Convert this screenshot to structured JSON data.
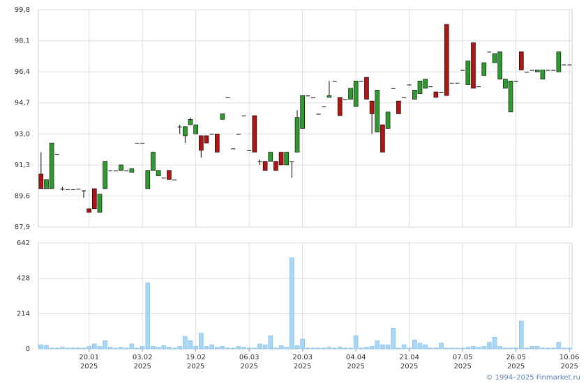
{
  "chart_data": {
    "type": "candlestick",
    "categories": [
      null,
      null,
      null,
      null,
      null,
      null,
      null,
      null,
      null,
      [
        "20.01",
        "2025"
      ],
      null,
      null,
      null,
      null,
      null,
      null,
      null,
      null,
      null,
      [
        "03.02",
        "2025"
      ],
      null,
      null,
      null,
      null,
      null,
      null,
      null,
      null,
      null,
      [
        "19.02",
        "2025"
      ],
      null,
      null,
      null,
      null,
      null,
      null,
      null,
      null,
      null,
      [
        "06.03",
        "2025"
      ],
      null,
      null,
      null,
      null,
      null,
      null,
      null,
      null,
      null,
      [
        "20.03",
        "2025"
      ],
      null,
      null,
      null,
      null,
      null,
      null,
      null,
      null,
      null,
      [
        "04.04",
        "2025"
      ],
      null,
      null,
      null,
      null,
      null,
      null,
      null,
      null,
      null,
      [
        "21.04",
        "2025"
      ],
      null,
      null,
      null,
      null,
      null,
      null,
      null,
      null,
      null,
      [
        "07.05",
        "2025"
      ],
      null,
      null,
      null,
      null,
      null,
      null,
      null,
      null,
      null,
      [
        "26.05",
        "2025"
      ],
      null,
      null,
      null,
      null,
      null,
      null,
      null,
      null,
      null,
      [
        "10.06",
        "2025"
      ]
    ],
    "open": [
      90.8,
      90.0,
      90.0,
      91.9,
      90.0,
      89.96,
      89.96,
      90.0,
      89.9,
      88.9,
      90.0,
      88.7,
      90.0,
      91.0,
      91.0,
      91.0,
      91.0,
      90.9,
      92.5,
      92.5,
      90.0,
      91.0,
      90.7,
      90.6,
      91.0,
      90.5,
      93.4,
      92.9,
      93.5,
      93.0,
      92.9,
      92.9,
      93.0,
      93.0,
      93.8,
      95.0,
      92.2,
      93.0,
      94.0,
      92.1,
      94.0,
      91.5,
      91.5,
      91.5,
      91.5,
      92.0,
      91.3,
      91.5,
      92.0,
      93.3,
      95.1,
      95.0,
      94.1,
      94.5,
      95.0,
      95.9,
      95.0,
      94.9,
      94.9,
      94.5,
      95.9,
      96.1,
      94.8,
      93.1,
      93.5,
      93.3,
      95.5,
      94.8,
      95.0,
      95.7,
      94.9,
      95.2,
      95.5,
      95.6,
      95.3,
      95.3,
      99.0,
      95.8,
      95.8,
      96.5,
      95.7,
      98.0,
      95.6,
      96.2,
      97.5,
      96.9,
      96.0,
      95.5,
      94.2,
      95.9,
      97.5,
      96.4,
      96.5,
      96.4,
      96.0,
      96.5,
      96.5,
      96.4,
      96.8,
      96.8
    ],
    "high": [
      92.0,
      90.5,
      92.5,
      91.9,
      90.1,
      89.96,
      89.96,
      90.0,
      89.9,
      88.9,
      90.0,
      89.7,
      91.5,
      91.0,
      91.0,
      91.3,
      91.0,
      91.1,
      92.5,
      92.5,
      91.0,
      92.0,
      91.0,
      90.6,
      91.0,
      90.5,
      93.5,
      93.4,
      93.9,
      93.5,
      92.9,
      92.9,
      93.0,
      93.0,
      94.1,
      95.0,
      92.2,
      93.0,
      94.0,
      92.1,
      94.0,
      91.6,
      91.5,
      92.0,
      91.5,
      92.0,
      92.0,
      91.5,
      94.3,
      95.1,
      95.1,
      95.0,
      94.1,
      94.5,
      95.9,
      95.9,
      95.0,
      94.9,
      95.5,
      95.9,
      95.9,
      96.1,
      94.8,
      95.4,
      93.5,
      94.2,
      95.5,
      94.8,
      95.0,
      95.7,
      95.4,
      95.9,
      96.0,
      95.6,
      95.3,
      95.3,
      99.0,
      95.8,
      95.8,
      96.5,
      97.0,
      98.0,
      95.6,
      96.9,
      97.5,
      97.4,
      97.5,
      96.0,
      95.9,
      95.9,
      97.5,
      96.4,
      96.5,
      96.5,
      96.5,
      96.5,
      96.5,
      97.5,
      96.8,
      96.8
    ],
    "low": [
      90.0,
      90.0,
      90.0,
      91.9,
      89.9,
      89.96,
      89.96,
      90.0,
      89.5,
      88.7,
      88.9,
      88.7,
      90.0,
      91.0,
      91.0,
      91.0,
      91.0,
      90.9,
      92.5,
      92.5,
      90.0,
      91.0,
      90.7,
      90.6,
      90.5,
      90.5,
      93.0,
      92.5,
      93.5,
      93.0,
      91.7,
      92.5,
      93.0,
      92.0,
      93.8,
      95.0,
      92.2,
      93.0,
      94.0,
      92.1,
      92.0,
      91.3,
      91.0,
      91.5,
      91.0,
      91.3,
      91.3,
      90.6,
      92.0,
      93.3,
      95.1,
      95.0,
      94.1,
      94.5,
      95.0,
      95.9,
      94.0,
      94.9,
      94.9,
      94.5,
      95.9,
      94.9,
      93.0,
      93.1,
      92.0,
      93.3,
      95.5,
      94.1,
      95.0,
      95.7,
      94.9,
      95.2,
      95.5,
      95.6,
      95.0,
      95.3,
      95.1,
      95.8,
      95.8,
      96.5,
      95.7,
      95.5,
      95.6,
      96.2,
      97.5,
      96.9,
      96.0,
      95.5,
      94.2,
      95.9,
      96.5,
      96.4,
      96.5,
      96.4,
      96.0,
      96.5,
      96.5,
      96.4,
      96.8,
      96.8
    ],
    "close": [
      90.0,
      90.5,
      92.5,
      91.9,
      90.0,
      89.96,
      89.96,
      90.0,
      89.9,
      88.7,
      88.9,
      89.7,
      91.5,
      91.0,
      91.0,
      91.3,
      91.0,
      91.1,
      92.5,
      92.5,
      91.0,
      92.0,
      91.0,
      90.6,
      90.5,
      90.5,
      93.4,
      93.4,
      93.8,
      93.5,
      92.1,
      92.5,
      93.0,
      92.0,
      94.1,
      95.0,
      92.2,
      93.0,
      94.0,
      92.1,
      92.0,
      91.5,
      91.0,
      92.0,
      91.0,
      91.3,
      92.0,
      91.5,
      93.9,
      95.1,
      95.1,
      95.0,
      94.1,
      94.5,
      95.1,
      95.9,
      94.0,
      94.9,
      95.5,
      95.9,
      95.9,
      94.9,
      94.1,
      95.4,
      92.0,
      94.2,
      95.5,
      94.1,
      95.0,
      95.7,
      95.4,
      95.9,
      96.0,
      95.6,
      95.0,
      95.3,
      95.1,
      95.8,
      95.8,
      96.5,
      97.0,
      95.5,
      95.6,
      96.9,
      97.5,
      97.4,
      97.5,
      96.0,
      95.9,
      95.9,
      96.5,
      96.4,
      96.5,
      96.5,
      96.5,
      96.5,
      96.5,
      97.5,
      96.8,
      96.8
    ],
    "volume": [
      25,
      22,
      5,
      6,
      10,
      5,
      5,
      6,
      5,
      15,
      30,
      15,
      50,
      10,
      5,
      10,
      5,
      30,
      5,
      15,
      401,
      15,
      10,
      20,
      10,
      5,
      15,
      76,
      50,
      15,
      95,
      15,
      25,
      10,
      15,
      5,
      5,
      15,
      10,
      5,
      5,
      30,
      25,
      80,
      5,
      20,
      10,
      553,
      20,
      60,
      5,
      5,
      5,
      5,
      10,
      5,
      10,
      5,
      5,
      80,
      5,
      10,
      15,
      50,
      25,
      25,
      125,
      5,
      25,
      5,
      55,
      35,
      25,
      5,
      5,
      35,
      5,
      5,
      5,
      5,
      10,
      15,
      10,
      15,
      40,
      70,
      15,
      5,
      5,
      5,
      169,
      5,
      15,
      15,
      5,
      5,
      5,
      40,
      5,
      5
    ],
    "up_color": "#2e9a2e",
    "down_color": "#b01515",
    "volume_color": "#a9d6f7",
    "ylim": [
      87.9,
      99.8
    ],
    "yticks": [
      {
        "value": 87.9,
        "label": "87,9"
      },
      {
        "value": 89.6,
        "label": "89,6"
      },
      {
        "value": 91.3,
        "label": "91,3"
      },
      {
        "value": 93.0,
        "label": "93,0"
      },
      {
        "value": 94.7,
        "label": "94,7"
      },
      {
        "value": 96.4,
        "label": "96,4"
      },
      {
        "value": 98.1,
        "label": "98,1"
      },
      {
        "value": 99.8,
        "label": "99,8"
      }
    ],
    "volume_ylim": [
      0,
      642
    ],
    "volume_yticks": [
      0,
      214,
      428,
      642
    ],
    "grid": true
  },
  "footer": "© 1994–2025 Finmarket.ru"
}
